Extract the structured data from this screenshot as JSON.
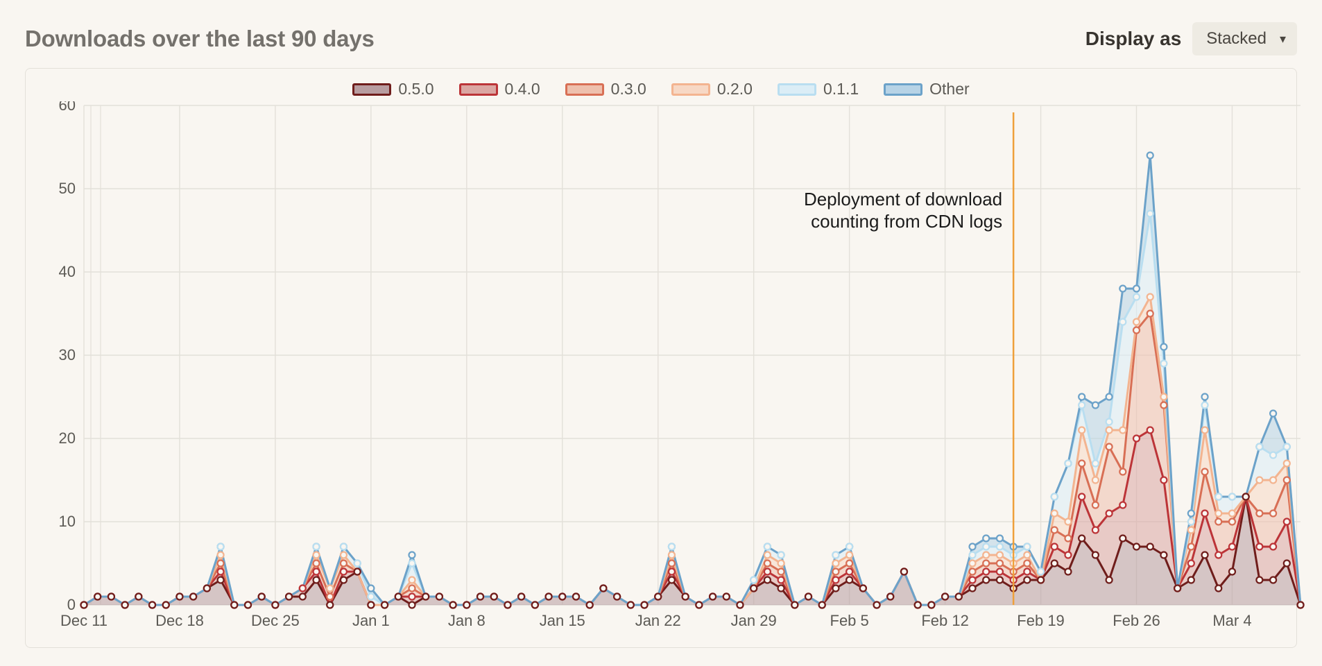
{
  "header": {
    "title": "Downloads over the last 90 days",
    "display_as_label": "Display as",
    "display_mode": "Stacked"
  },
  "chart": {
    "type": "stacked-area",
    "background_color": "#f9f6f1",
    "panel_border_color": "#e3e0d9",
    "grid_color": "#e3e0d9",
    "axis_text_color": "#5c5a55",
    "title_color": "#74716c",
    "marker_radius": 4.5,
    "marker_stroke_width": 2.2,
    "area_opacity": 0.55,
    "line_width": 3,
    "y": {
      "min": 0,
      "max": 60,
      "tick_step": 10
    },
    "x_tick_labels": [
      "Dec 11",
      "Dec 18",
      "Dec 25",
      "Jan 1",
      "Jan 8",
      "Jan 15",
      "Jan 22",
      "Jan 29",
      "Feb 5",
      "Feb 12",
      "Feb 19",
      "Feb 26",
      "Mar 4"
    ],
    "x_tick_indices": [
      0,
      7,
      14,
      21,
      28,
      35,
      42,
      49,
      56,
      63,
      70,
      77,
      84
    ],
    "n_points": 90,
    "series": [
      {
        "id": "v050",
        "label": "0.5.0",
        "stroke": "#6f1d1b",
        "fill": "#b89da0",
        "values": [
          0,
          1,
          1,
          0,
          1,
          0,
          0,
          1,
          1,
          2,
          3,
          0,
          0,
          1,
          0,
          1,
          1,
          3,
          0,
          3,
          4,
          0,
          0,
          1,
          0,
          1,
          1,
          0,
          0,
          1,
          1,
          0,
          1,
          0,
          1,
          1,
          1,
          0,
          2,
          1,
          0,
          0,
          1,
          3,
          1,
          0,
          1,
          1,
          0,
          2,
          3,
          2,
          0,
          1,
          0,
          2,
          3,
          2,
          0,
          1,
          4,
          0,
          0,
          1,
          1,
          2,
          3,
          3,
          2,
          3,
          3,
          5,
          4,
          8,
          6,
          3,
          8,
          7,
          7,
          6,
          2,
          3,
          6,
          2,
          4,
          13,
          3,
          3,
          5,
          0
        ]
      },
      {
        "id": "v040",
        "label": "0.4.0",
        "stroke": "#bc3438",
        "fill": "#dba6a2",
        "values": [
          0,
          0,
          0,
          0,
          0,
          0,
          0,
          0,
          0,
          0,
          1,
          0,
          0,
          0,
          0,
          0,
          1,
          1,
          0,
          1,
          0,
          0,
          0,
          0,
          1,
          0,
          0,
          0,
          0,
          0,
          0,
          0,
          0,
          0,
          0,
          0,
          0,
          0,
          0,
          0,
          0,
          0,
          0,
          1,
          0,
          0,
          0,
          0,
          0,
          0,
          1,
          1,
          0,
          0,
          0,
          1,
          1,
          0,
          0,
          0,
          0,
          0,
          0,
          0,
          0,
          1,
          1,
          1,
          1,
          1,
          0,
          2,
          2,
          5,
          3,
          8,
          4,
          13,
          14,
          9,
          0,
          2,
          5,
          4,
          3,
          0,
          4,
          4,
          5,
          0
        ]
      },
      {
        "id": "v030",
        "label": "0.3.0",
        "stroke": "#d86f55",
        "fill": "#eec0ad",
        "values": [
          0,
          0,
          0,
          0,
          0,
          0,
          0,
          0,
          0,
          0,
          1,
          0,
          0,
          0,
          0,
          0,
          0,
          1,
          1,
          1,
          0,
          0,
          0,
          0,
          1,
          0,
          0,
          0,
          0,
          0,
          0,
          0,
          0,
          0,
          0,
          0,
          0,
          0,
          0,
          0,
          0,
          0,
          0,
          1,
          0,
          0,
          0,
          0,
          0,
          0,
          1,
          1,
          0,
          0,
          0,
          1,
          1,
          0,
          0,
          0,
          0,
          0,
          0,
          0,
          0,
          1,
          1,
          1,
          1,
          1,
          0,
          2,
          2,
          4,
          3,
          8,
          4,
          13,
          14,
          9,
          0,
          2,
          5,
          4,
          3,
          0,
          4,
          4,
          5,
          0
        ]
      },
      {
        "id": "v020",
        "label": "0.2.0",
        "stroke": "#f3b490",
        "fill": "#f7d8c5",
        "values": [
          0,
          0,
          0,
          0,
          0,
          0,
          0,
          0,
          0,
          0,
          1,
          0,
          0,
          0,
          0,
          0,
          0,
          1,
          1,
          1,
          0,
          0,
          0,
          0,
          1,
          0,
          0,
          0,
          0,
          0,
          0,
          0,
          0,
          0,
          0,
          0,
          0,
          0,
          0,
          0,
          0,
          0,
          0,
          1,
          0,
          0,
          0,
          0,
          0,
          0,
          1,
          1,
          0,
          0,
          0,
          1,
          1,
          0,
          0,
          0,
          0,
          0,
          0,
          0,
          0,
          1,
          1,
          1,
          1,
          1,
          0,
          2,
          2,
          4,
          3,
          2,
          5,
          1,
          2,
          1,
          0,
          2,
          5,
          1,
          1,
          0,
          4,
          4,
          2,
          0
        ]
      },
      {
        "id": "v011",
        "label": "0.1.1",
        "stroke": "#b9def0",
        "fill": "#dbedf6",
        "values": [
          0,
          0,
          0,
          0,
          0,
          0,
          0,
          0,
          0,
          0,
          1,
          0,
          0,
          0,
          0,
          0,
          0,
          1,
          0,
          1,
          1,
          1,
          0,
          0,
          2,
          0,
          0,
          0,
          0,
          0,
          0,
          0,
          0,
          0,
          0,
          0,
          0,
          0,
          0,
          0,
          0,
          0,
          0,
          1,
          0,
          0,
          0,
          0,
          0,
          1,
          1,
          1,
          0,
          0,
          0,
          1,
          1,
          0,
          0,
          0,
          0,
          0,
          0,
          0,
          0,
          1,
          1,
          1,
          1,
          1,
          1,
          2,
          7,
          3,
          2,
          1,
          13,
          3,
          10,
          4,
          0,
          1,
          3,
          2,
          2,
          0,
          4,
          3,
          2,
          0
        ]
      },
      {
        "id": "other",
        "label": "Other",
        "stroke": "#6ca2c9",
        "fill": "#b7d3e6",
        "values": [
          0,
          0,
          0,
          0,
          0,
          0,
          0,
          0,
          0,
          0,
          0,
          0,
          0,
          0,
          0,
          0,
          0,
          0,
          0,
          0,
          0,
          1,
          0,
          0,
          1,
          0,
          0,
          0,
          0,
          0,
          0,
          0,
          0,
          0,
          0,
          0,
          0,
          0,
          0,
          0,
          0,
          0,
          0,
          0,
          0,
          0,
          0,
          0,
          0,
          0,
          0,
          0,
          0,
          0,
          0,
          0,
          0,
          0,
          0,
          0,
          0,
          0,
          0,
          0,
          0,
          1,
          1,
          1,
          1,
          0,
          0,
          0,
          0,
          1,
          7,
          3,
          4,
          1,
          7,
          2,
          0,
          1,
          1,
          0,
          0,
          0,
          0,
          5,
          0,
          0
        ]
      }
    ],
    "annotation": {
      "text_lines": [
        "Deployment of download",
        "counting from CDN logs"
      ],
      "line_color": "#eea03a",
      "text_color": "#1b1b1b",
      "x_index": 68,
      "line_width": 2.5
    }
  }
}
